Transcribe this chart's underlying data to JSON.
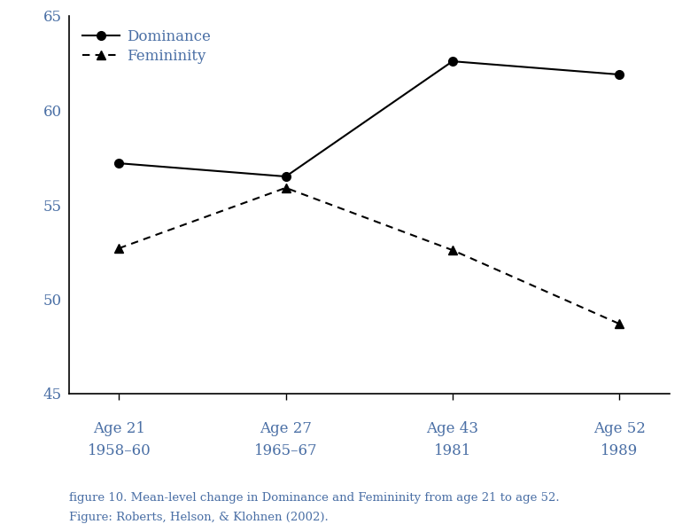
{
  "x_positions": [
    0,
    1,
    2,
    3
  ],
  "x_labels_line1": [
    "Age 21",
    "Age 27",
    "Age 43",
    "Age 52"
  ],
  "x_labels_line2": [
    "1958–60",
    "1965–67",
    "1981",
    "1989"
  ],
  "dominance": [
    57.2,
    56.5,
    62.6,
    61.9
  ],
  "femininity": [
    52.7,
    55.9,
    52.6,
    48.7
  ],
  "ylim": [
    45,
    65
  ],
  "yticks": [
    45,
    50,
    55,
    60,
    65
  ],
  "line_color": "#000000",
  "text_color": "#4a6fa5",
  "caption_line1": "figure 10. Mean-level change in Dominance and Femininity from age 21 to age 52.",
  "caption_line2": "Figure: Roberts, Helson, & Klohnen (2002).",
  "background_color": "#ffffff",
  "legend_dominance": "Dominance",
  "legend_femininity": "Femininity"
}
